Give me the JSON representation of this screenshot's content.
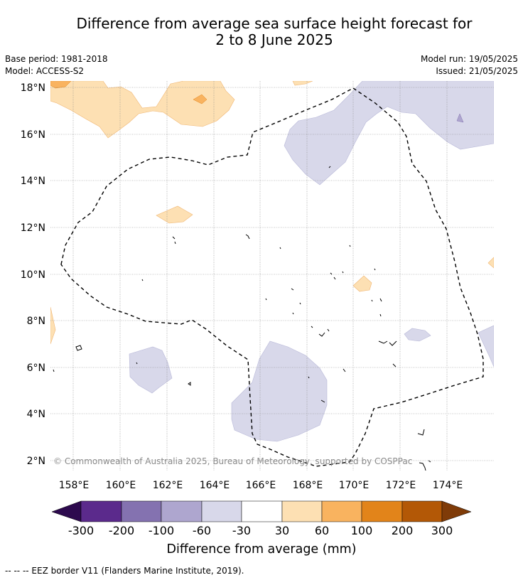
{
  "title": {
    "line1": "Difference from average sea surface height forecast for",
    "line2": "2 to 8 June 2025"
  },
  "meta_left": {
    "base_period": "Base period: 1981-2018",
    "model": "Model: ACCESS-S2"
  },
  "meta_right": {
    "model_run": "Model run: 19/05/2025",
    "issued": "Issued: 21/05/2025"
  },
  "map": {
    "lon_range": [
      157,
      176
    ],
    "lat_range": [
      1.5,
      18.3
    ],
    "lon_ticks": [
      "158°E",
      "160°E",
      "162°E",
      "164°E",
      "166°E",
      "168°E",
      "170°E",
      "172°E",
      "174°E"
    ],
    "lat_ticks": [
      "2°N",
      "4°N",
      "6°N",
      "8°N",
      "10°N",
      "12°N",
      "14°N",
      "16°N",
      "18°N"
    ],
    "copyright": "© Commonwealth of Australia 2025, Bureau of Meteorology, supported by COSPPac",
    "border_style": "dashed",
    "grid": "dotted"
  },
  "colorbar": {
    "label": "Difference from average (mm)",
    "tick_labels": [
      "-300",
      "-200",
      "-100",
      "-60",
      "-30",
      "30",
      "60",
      "100",
      "200",
      "300"
    ],
    "bins": [
      {
        "range": "< -300",
        "color": "#2d0a4e"
      },
      {
        "range": "-300 to -200",
        "color": "#5b2a8c"
      },
      {
        "range": "-200 to -100",
        "color": "#8472b0"
      },
      {
        "range": "-100 to -60",
        "color": "#aea6cf"
      },
      {
        "range": "-60 to -30",
        "color": "#d8d8ea"
      },
      {
        "range": "-30 to 30",
        "color": "#ffffff"
      },
      {
        "range": "30 to 60",
        "color": "#fde0b3"
      },
      {
        "range": "60 to 100",
        "color": "#f9b35f"
      },
      {
        "range": "100 to 200",
        "color": "#e2841a"
      },
      {
        "range": "200 to 300",
        "color": "#b35806"
      },
      {
        "range": "> 300",
        "color": "#7f3b08"
      }
    ]
  },
  "footnote": "--  --  -- EEZ border V11 (Flanders Marine Institute, 2019)."
}
